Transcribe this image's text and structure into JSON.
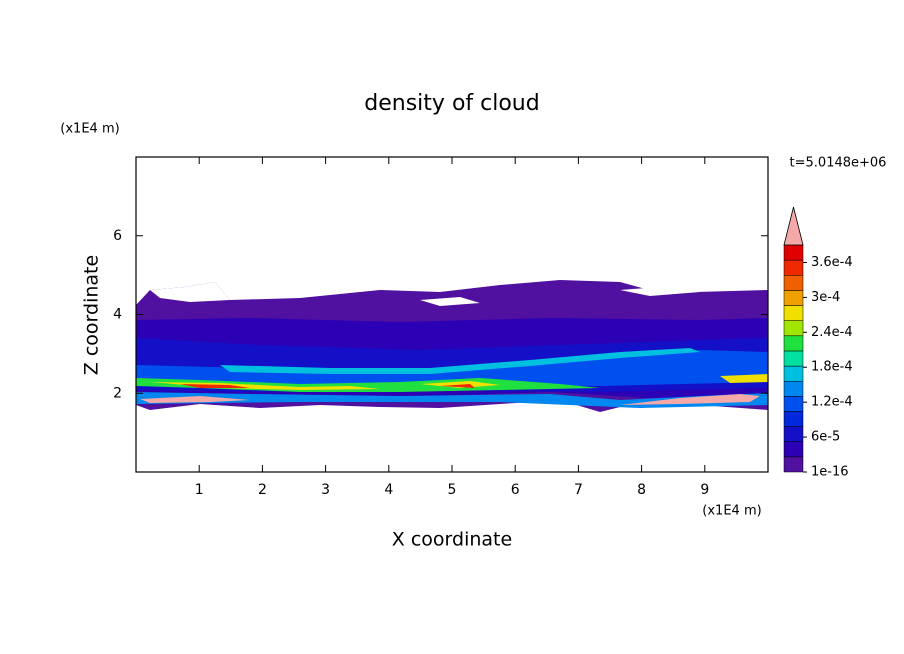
{
  "chart_data": {
    "type": "contour",
    "title": "density of cloud",
    "x_label": "X coordinate",
    "y_label": "Z coordinate",
    "x_unit": "(x1E4 m)",
    "y_unit": "(x1E4 m)",
    "annotation": "t=5.0148e+06",
    "xlim": [
      0,
      10
    ],
    "xticks": [
      1,
      2,
      3,
      4,
      5,
      6,
      7,
      8,
      9
    ],
    "ylim": [
      0,
      8
    ],
    "yticks": [
      2,
      4,
      6
    ],
    "colorbar": {
      "lim": [
        1e-16,
        0.00039
      ],
      "ticks": [
        {
          "value": 1e-16,
          "label": "1e-16"
        },
        {
          "value": 6e-05,
          "label": "6e-5"
        },
        {
          "value": 0.00012,
          "label": "1.2e-4"
        },
        {
          "value": 0.00018,
          "label": "1.8e-4"
        },
        {
          "value": 0.00024,
          "label": "2.4e-4"
        },
        {
          "value": 0.0003,
          "label": "3e-4"
        },
        {
          "value": 0.00036,
          "label": "3.6e-4"
        }
      ],
      "colors": [
        "#5010a0",
        "#2c00b4",
        "#1410c8",
        "#0028dc",
        "#0050f0",
        "#0088f0",
        "#00c0e0",
        "#00e0a0",
        "#20e040",
        "#a0e600",
        "#f0e000",
        "#f0a000",
        "#f06000",
        "#f02800",
        "#e00000"
      ],
      "over_color": "#f4a8a8"
    }
  }
}
